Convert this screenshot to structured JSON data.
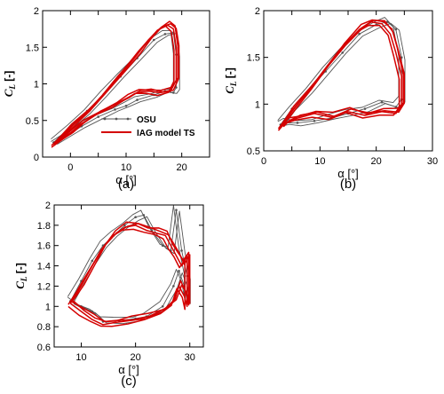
{
  "legend": {
    "osu": "OSU",
    "iag": "IAG model TS"
  },
  "colors": {
    "osu": "#555555",
    "iag": "#d40000"
  },
  "chart_data": [
    {
      "id": "a",
      "type": "line",
      "caption": "(a)",
      "xlabel": "α [°]",
      "ylabel": "C",
      "ylabel_sub": "L",
      "ylabel_tail": " [-]",
      "xlim": [
        -5,
        25
      ],
      "ylim": [
        0,
        2
      ],
      "xticks": [
        -5,
        0,
        5,
        10,
        15,
        20,
        25
      ],
      "yticks": [
        0,
        0.5,
        1,
        1.5,
        2
      ],
      "xtick_labels": [
        "",
        "0",
        "",
        "10",
        "",
        "20",
        ""
      ],
      "ytick_labels": [
        "0",
        "0.5",
        "1",
        "1.5",
        "2"
      ],
      "legend_position": "lower-right",
      "series": [
        {
          "name": "OSU",
          "x": [
            -3,
            0,
            3,
            6,
            9,
            12,
            15,
            17,
            18.5,
            19,
            19,
            18.5,
            17,
            15,
            12,
            10,
            8,
            5,
            2,
            0,
            -3
          ],
          "y": [
            0.2,
            0.42,
            0.63,
            0.86,
            1.1,
            1.35,
            1.6,
            1.68,
            1.7,
            1.4,
            0.95,
            0.88,
            0.9,
            0.85,
            0.78,
            0.7,
            0.65,
            0.55,
            0.42,
            0.32,
            0.2
          ]
        },
        {
          "name": "IAG model TS",
          "x": [
            -3,
            0,
            3,
            6,
            9,
            12,
            14,
            16,
            17.5,
            18.5,
            19,
            19,
            18,
            16,
            14,
            12,
            10,
            8,
            5,
            2,
            0,
            -3
          ],
          "y": [
            0.17,
            0.4,
            0.62,
            0.86,
            1.12,
            1.4,
            1.6,
            1.75,
            1.8,
            1.75,
            1.5,
            1.05,
            0.9,
            0.88,
            0.9,
            0.88,
            0.8,
            0.72,
            0.6,
            0.45,
            0.33,
            0.17
          ]
        }
      ]
    },
    {
      "id": "b",
      "type": "line",
      "caption": "(b)",
      "xlabel": "α [°]",
      "ylabel": "C",
      "ylabel_sub": "L",
      "ylabel_tail": " [-]",
      "xlim": [
        0,
        30
      ],
      "ylim": [
        0.5,
        2
      ],
      "xticks": [
        0,
        5,
        10,
        15,
        20,
        25,
        30
      ],
      "yticks": [
        0.5,
        1,
        1.5,
        2
      ],
      "xtick_labels": [
        "0",
        "",
        "10",
        "",
        "20",
        "",
        "30"
      ],
      "ytick_labels": [
        "0.5",
        "1",
        "1.5",
        "2"
      ],
      "series": [
        {
          "name": "OSU",
          "x": [
            3,
            5,
            8,
            11,
            14,
            17,
            20,
            22,
            23.5,
            24.5,
            24.5,
            23.5,
            21,
            18,
            15,
            12,
            9,
            6,
            4,
            3
          ],
          "y": [
            0.78,
            0.95,
            1.15,
            1.35,
            1.55,
            1.75,
            1.85,
            1.88,
            1.8,
            1.5,
            1.05,
            0.97,
            1.02,
            0.95,
            0.9,
            0.85,
            0.82,
            0.8,
            0.8,
            0.78
          ]
        },
        {
          "name": "IAG model TS",
          "x": [
            3,
            5,
            8,
            11,
            14,
            17,
            19,
            21,
            22.5,
            23.5,
            24.5,
            24.5,
            23.5,
            21,
            18,
            15,
            12,
            9,
            6,
            4,
            3
          ],
          "y": [
            0.75,
            0.92,
            1.15,
            1.38,
            1.6,
            1.8,
            1.88,
            1.86,
            1.75,
            1.55,
            1.3,
            0.98,
            0.9,
            0.92,
            0.88,
            0.92,
            0.86,
            0.9,
            0.85,
            0.8,
            0.75
          ]
        }
      ]
    },
    {
      "id": "c",
      "type": "line",
      "caption": "(c)",
      "xlabel": "α [°]",
      "ylabel": "C",
      "ylabel_sub": "L",
      "ylabel_tail": " [-]",
      "xlim": [
        5,
        32.5
      ],
      "ylim": [
        0.6,
        2
      ],
      "xticks": [
        10,
        20,
        30
      ],
      "yticks": [
        0.6,
        0.8,
        1,
        1.2,
        1.4,
        1.6,
        1.8,
        2
      ],
      "xtick_labels": [
        "10",
        "20",
        "30"
      ],
      "ytick_labels": [
        "0.6",
        "0.8",
        "1",
        "1.2",
        "1.4",
        "1.6",
        "1.8",
        "2"
      ],
      "series": [
        {
          "name": "OSU",
          "x": [
            8,
            10,
            12,
            14,
            16,
            18,
            20,
            21.5,
            23,
            25,
            26.5,
            27.5,
            28.5,
            29.5,
            29.5,
            29,
            28,
            27,
            25,
            22,
            20,
            17,
            14,
            12,
            10,
            8
          ],
          "y": [
            1.05,
            1.25,
            1.45,
            1.6,
            1.7,
            1.8,
            1.88,
            1.9,
            1.75,
            1.6,
            1.55,
            1.95,
            1.55,
            1.3,
            1.05,
            1.2,
            1.35,
            1.2,
            1.0,
            0.9,
            0.88,
            0.86,
            0.85,
            0.95,
            1.0,
            1.05
          ]
        },
        {
          "name": "IAG model TS",
          "x": [
            8,
            10,
            12,
            14,
            16,
            18,
            20,
            22,
            24,
            25.5,
            26.5,
            27.5,
            28.5,
            29.5,
            29.5,
            29,
            28,
            27,
            25,
            22,
            19,
            16,
            14,
            12,
            10,
            8
          ],
          "y": [
            1.03,
            1.2,
            1.4,
            1.58,
            1.7,
            1.78,
            1.8,
            1.75,
            1.72,
            1.7,
            1.6,
            1.5,
            1.4,
            1.5,
            1.0,
            1.1,
            1.2,
            1.05,
            0.95,
            0.88,
            0.86,
            0.84,
            0.82,
            0.87,
            0.95,
            1.03
          ]
        }
      ]
    }
  ]
}
